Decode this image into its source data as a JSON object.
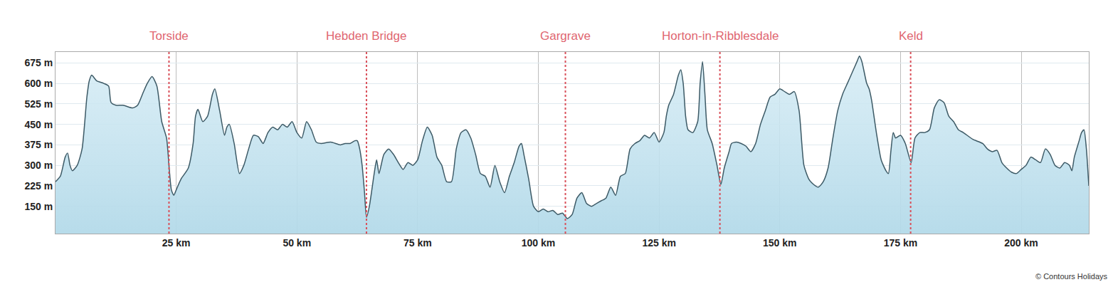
{
  "chart_data": {
    "type": "area",
    "color": "#3d5a66",
    "grid": true,
    "xlim": [
      0,
      214
    ],
    "ylim": [
      50,
      715
    ],
    "xticks": [
      {
        "value": 25,
        "label": "25 km"
      },
      {
        "value": 50,
        "label": "50 km"
      },
      {
        "value": 75,
        "label": "75 km"
      },
      {
        "value": 100,
        "label": "100 km"
      },
      {
        "value": 125,
        "label": "125 km"
      },
      {
        "value": 150,
        "label": "150 km"
      },
      {
        "value": 175,
        "label": "175 km"
      },
      {
        "value": 200,
        "label": "200 km"
      }
    ],
    "yticks": [
      {
        "value": 150,
        "label": "150 m"
      },
      {
        "value": 225,
        "label": "225 m"
      },
      {
        "value": 300,
        "label": "300 m"
      },
      {
        "value": 375,
        "label": "375 m"
      },
      {
        "value": 450,
        "label": "450 m"
      },
      {
        "value": 525,
        "label": "525 m"
      },
      {
        "value": 600,
        "label": "600 m"
      },
      {
        "value": 675,
        "label": "675 m"
      }
    ],
    "annotations": [
      {
        "text": "Torside",
        "x": 23.5
      },
      {
        "text": "Hebden Bridge",
        "x": 64.4
      },
      {
        "text": "Gargrave",
        "x": 105.6
      },
      {
        "text": "Horton-in-Ribblesdale",
        "x": 137.6
      },
      {
        "text": "Keld",
        "x": 177.1
      }
    ],
    "source": "© Contours Holidays",
    "x": [
      0,
      1,
      2,
      2.5,
      3,
      3.5,
      4.5,
      5.5,
      6.5,
      7,
      7.5,
      8.5,
      10,
      11,
      11.5,
      12.5,
      14,
      16,
      17,
      18,
      19,
      20,
      21,
      22,
      23,
      23.5,
      24,
      24.5,
      25,
      26,
      27.5,
      28.5,
      29,
      29.5,
      30.5,
      31.5,
      32.5,
      33,
      34,
      35,
      35.5,
      36,
      37,
      38.1,
      39,
      40,
      41,
      42,
      43,
      44,
      45,
      46,
      47,
      48,
      49,
      50,
      51,
      52,
      53,
      54,
      55,
      57,
      59,
      60,
      61,
      62,
      62.5,
      63,
      63.5,
      64,
      64.4,
      65,
      66,
      66.5,
      67,
      68,
      69,
      70,
      71,
      72,
      73,
      74,
      75,
      76,
      77,
      78,
      79,
      80,
      81,
      82,
      83,
      84,
      85,
      86,
      87,
      88,
      89,
      90,
      91,
      92,
      93,
      94,
      95,
      96,
      96.5,
      97,
      98,
      99,
      100,
      101,
      102,
      103,
      104,
      105,
      106,
      107,
      108,
      109,
      110,
      111,
      112,
      113,
      114,
      115,
      116,
      117,
      118,
      119,
      120,
      121,
      122,
      123,
      124,
      125,
      126,
      126.5,
      127,
      128,
      129,
      129.5,
      130,
      130.5,
      131,
      132,
      133,
      133.5,
      134,
      134.5,
      135,
      136,
      137,
      137.8,
      138.5,
      139.5,
      140,
      141,
      142,
      143,
      144,
      145,
      146,
      147,
      148,
      149,
      150,
      151,
      152,
      153,
      154,
      155,
      156,
      157,
      158,
      159,
      160,
      161,
      162,
      163,
      164,
      165,
      166,
      166.5,
      167,
      168,
      168.5,
      169,
      170,
      171,
      172,
      172.5,
      173,
      173.5,
      174,
      175,
      176,
      177.2,
      178,
      179,
      180,
      181,
      182,
      183,
      184,
      185,
      186,
      187,
      188,
      190,
      192,
      193,
      194,
      195,
      196,
      197,
      198,
      199,
      200,
      201,
      202,
      203,
      204,
      205,
      206,
      207,
      208,
      209,
      210,
      210.5,
      211,
      212,
      212.5,
      213,
      213.5,
      214
    ],
    "values": [
      240,
      260,
      330,
      345,
      300,
      280,
      300,
      360,
      550,
      610,
      630,
      610,
      600,
      590,
      530,
      520,
      520,
      510,
      520,
      560,
      600,
      625,
      590,
      460,
      400,
      300,
      210,
      190,
      210,
      250,
      290,
      380,
      480,
      505,
      460,
      480,
      560,
      580,
      500,
      410,
      440,
      450,
      380,
      270,
      300,
      360,
      410,
      405,
      380,
      420,
      440,
      430,
      450,
      440,
      460,
      420,
      400,
      460,
      430,
      385,
      380,
      385,
      375,
      380,
      380,
      390,
      390,
      360,
      300,
      200,
      110,
      150,
      270,
      320,
      270,
      340,
      360,
      340,
      310,
      285,
      310,
      300,
      320,
      390,
      440,
      410,
      330,
      300,
      240,
      240,
      360,
      420,
      430,
      400,
      340,
      270,
      260,
      220,
      300,
      240,
      200,
      260,
      310,
      370,
      380,
      340,
      250,
      150,
      130,
      140,
      130,
      135,
      120,
      125,
      105,
      120,
      180,
      200,
      160,
      150,
      160,
      170,
      180,
      220,
      190,
      260,
      270,
      360,
      380,
      390,
      410,
      400,
      420,
      385,
      420,
      480,
      520,
      560,
      630,
      650,
      600,
      480,
      430,
      420,
      460,
      600,
      680,
      560,
      430,
      380,
      300,
      230,
      290,
      350,
      380,
      385,
      380,
      370,
      350,
      380,
      450,
      500,
      550,
      560,
      580,
      570,
      560,
      570,
      500,
      300,
      250,
      230,
      220,
      240,
      290,
      400,
      500,
      560,
      600,
      640,
      680,
      700,
      680,
      600,
      580,
      540,
      420,
      320,
      280,
      270,
      350,
      420,
      400,
      410,
      380,
      310,
      400,
      420,
      420,
      430,
      510,
      540,
      530,
      480,
      460,
      430,
      420,
      395,
      380,
      360,
      350,
      355,
      310,
      290,
      275,
      270,
      285,
      300,
      330,
      320,
      310,
      360,
      340,
      300,
      290,
      310,
      300,
      280,
      330,
      390,
      420,
      430,
      360,
      225
    ]
  }
}
